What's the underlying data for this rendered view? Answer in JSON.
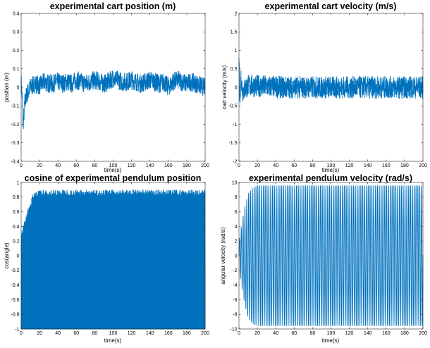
{
  "colors": {
    "series": "#0072BD",
    "axes": "#262626",
    "background": "#ffffff"
  },
  "chart_data": [
    {
      "type": "line",
      "title": "experimental cart position (m)",
      "xlabel": "time(s)",
      "ylabel": "position (m)",
      "xlim": [
        0,
        200
      ],
      "ylim": [
        -0.4,
        0.4
      ],
      "xticks": [
        "0",
        "20",
        "40",
        "60",
        "80",
        "100",
        "120",
        "140",
        "160",
        "180",
        "200"
      ],
      "yticks": [
        "-0.4",
        "-0.3",
        "-0.2",
        "-0.1",
        "0",
        "0.1",
        "0.2",
        "0.3",
        "0.4"
      ],
      "grid": false,
      "series": [
        {
          "x": [
            0,
            1,
            2,
            3,
            4,
            6,
            8,
            10,
            15,
            20,
            25,
            30,
            35,
            40,
            45,
            50,
            55,
            60,
            65,
            70,
            75,
            80,
            85,
            90,
            95,
            100,
            105,
            110,
            115,
            120,
            125,
            130,
            135,
            140,
            145,
            150,
            155,
            160,
            165,
            170,
            175,
            180,
            185,
            190,
            195,
            200
          ],
          "values": [
            0.03,
            -0.05,
            -0.2,
            -0.15,
            -0.08,
            -0.04,
            -0.02,
            0.0,
            0.02,
            0.01,
            0.03,
            0.02,
            0.02,
            0.03,
            0.02,
            0.03,
            0.02,
            0.04,
            0.03,
            0.02,
            0.03,
            0.04,
            0.03,
            0.02,
            0.03,
            0.05,
            0.04,
            0.03,
            0.03,
            0.04,
            0.03,
            0.02,
            0.03,
            0.04,
            0.03,
            0.02,
            0.03,
            0.0,
            0.03,
            0.04,
            0.03,
            0.02,
            0.03,
            0.02,
            0.01,
            0.0
          ],
          "noise_amplitude": 0.05
        }
      ]
    },
    {
      "type": "line",
      "title": "experimental cart velocity (m/s)",
      "xlabel": "time(s)",
      "ylabel": "cart velocity (m/s)",
      "xlim": [
        0,
        200
      ],
      "ylim": [
        -2,
        2
      ],
      "xticks": [
        "0",
        "20",
        "40",
        "60",
        "80",
        "100",
        "120",
        "140",
        "160",
        "180",
        "200"
      ],
      "yticks": [
        "-2",
        "-1.5",
        "-1",
        "-0.5",
        "0",
        "0.5",
        "1",
        "1.5",
        "2"
      ],
      "grid": false,
      "series": [
        {
          "x": [
            0,
            1,
            2,
            4,
            10,
            50,
            100,
            150,
            200
          ],
          "values": [
            0.7,
            -0.4,
            0.3,
            -0.1,
            0.05,
            0.0,
            0.0,
            0.0,
            0.0
          ],
          "noise_amplitude": 0.3
        }
      ]
    },
    {
      "type": "line",
      "title": "cosine of experimental pendulum position",
      "xlabel": "time(s)",
      "ylabel": "cos(angle)",
      "xlim": [
        0,
        200
      ],
      "ylim": [
        -1,
        1
      ],
      "xticks": [
        "0",
        "20",
        "40",
        "60",
        "80",
        "100",
        "120",
        "140",
        "160",
        "180",
        "200"
      ],
      "yticks": [
        "-1",
        "-0.8",
        "-0.6",
        "-0.4",
        "-0.2",
        "0",
        "0.2",
        "0.4",
        "0.6",
        "0.8",
        "1"
      ],
      "grid": false,
      "series": [
        {
          "lower": -1,
          "upper_x": [
            0,
            2,
            4,
            6,
            8,
            10,
            12,
            15,
            20,
            40,
            60,
            80,
            100,
            120,
            140,
            160,
            180,
            200
          ],
          "upper_values": [
            0.3,
            0.35,
            0.45,
            0.55,
            0.62,
            0.68,
            0.78,
            0.85,
            0.85,
            0.86,
            0.86,
            0.86,
            0.86,
            0.86,
            0.86,
            0.86,
            0.86,
            0.86
          ]
        }
      ]
    },
    {
      "type": "line",
      "title": "experimental pendulum velocity (rad/s)",
      "xlabel": "time(s)",
      "ylabel": "angular velocity (rad/s)",
      "xlim": [
        0,
        200
      ],
      "ylim": [
        -10,
        10
      ],
      "xticks": [
        "0",
        "20",
        "40",
        "60",
        "80",
        "100",
        "120",
        "140",
        "160",
        "180",
        "200"
      ],
      "yticks": [
        "-10",
        "-8",
        "-6",
        "-4",
        "-2",
        "0",
        "2",
        "4",
        "6",
        "8",
        "10"
      ],
      "grid": false,
      "series": [
        {
          "amplitude_x": [
            0,
            2,
            4,
            6,
            8,
            10,
            15,
            20,
            200
          ],
          "amplitude_values": [
            2,
            3.5,
            5,
            6.5,
            7.5,
            8.5,
            9.3,
            9.6,
            9.6
          ],
          "oscillation_count": 100
        }
      ]
    }
  ]
}
